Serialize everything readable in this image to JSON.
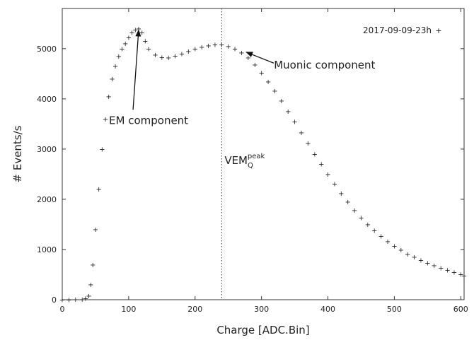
{
  "chart_data": {
    "type": "scatter",
    "xlabel": "Charge [ADC.Bin]",
    "ylabel": "# Events/s",
    "xlim": [
      0,
      605
    ],
    "ylim": [
      0,
      5800
    ],
    "xticks": [
      0,
      100,
      200,
      300,
      400,
      500,
      600
    ],
    "yticks": [
      0,
      1000,
      2000,
      3000,
      4000,
      5000
    ],
    "grid": false,
    "legend_position": "top-right",
    "marker": "+",
    "series": [
      {
        "name": "2017-09-09-23h",
        "color": "#ff2a2a",
        "x": [
          0,
          10,
          20,
          30,
          35,
          40,
          43,
          46,
          50,
          55,
          60,
          65,
          70,
          75,
          80,
          85,
          90,
          95,
          100,
          105,
          110,
          115,
          120,
          125,
          130,
          140,
          150,
          160,
          170,
          180,
          190,
          200,
          210,
          220,
          230,
          240,
          250,
          260,
          270,
          280,
          290,
          300,
          310,
          320,
          330,
          340,
          350,
          360,
          370,
          380,
          390,
          400,
          410,
          420,
          430,
          440,
          450,
          460,
          470,
          480,
          490,
          500,
          510,
          520,
          530,
          540,
          550,
          560,
          570,
          580,
          590,
          600,
          605
        ],
        "y": [
          0,
          0,
          5,
          10,
          30,
          80,
          300,
          700,
          1400,
          2200,
          3000,
          3600,
          4050,
          4400,
          4650,
          4850,
          5000,
          5100,
          5220,
          5320,
          5380,
          5400,
          5320,
          5150,
          5000,
          4880,
          4830,
          4820,
          4860,
          4900,
          4950,
          5000,
          5030,
          5060,
          5080,
          5080,
          5050,
          5000,
          4920,
          4820,
          4680,
          4520,
          4340,
          4160,
          3960,
          3750,
          3550,
          3330,
          3120,
          2900,
          2700,
          2500,
          2310,
          2120,
          1950,
          1780,
          1630,
          1500,
          1380,
          1270,
          1160,
          1070,
          990,
          910,
          850,
          790,
          730,
          680,
          630,
          590,
          550,
          510,
          480
        ]
      }
    ],
    "annotations": [
      {
        "text": "EM component",
        "arrow_to": [
          115,
          5370
        ],
        "text_at": [
          130,
          3500
        ]
      },
      {
        "text": "Muonic component",
        "arrow_to": [
          277,
          4930
        ],
        "text_at": [
          395,
          4600
        ]
      }
    ],
    "vline": {
      "x": 240,
      "label": "VEM",
      "label_sup": "peak",
      "label_sub": "Q",
      "style": "dotted"
    }
  }
}
